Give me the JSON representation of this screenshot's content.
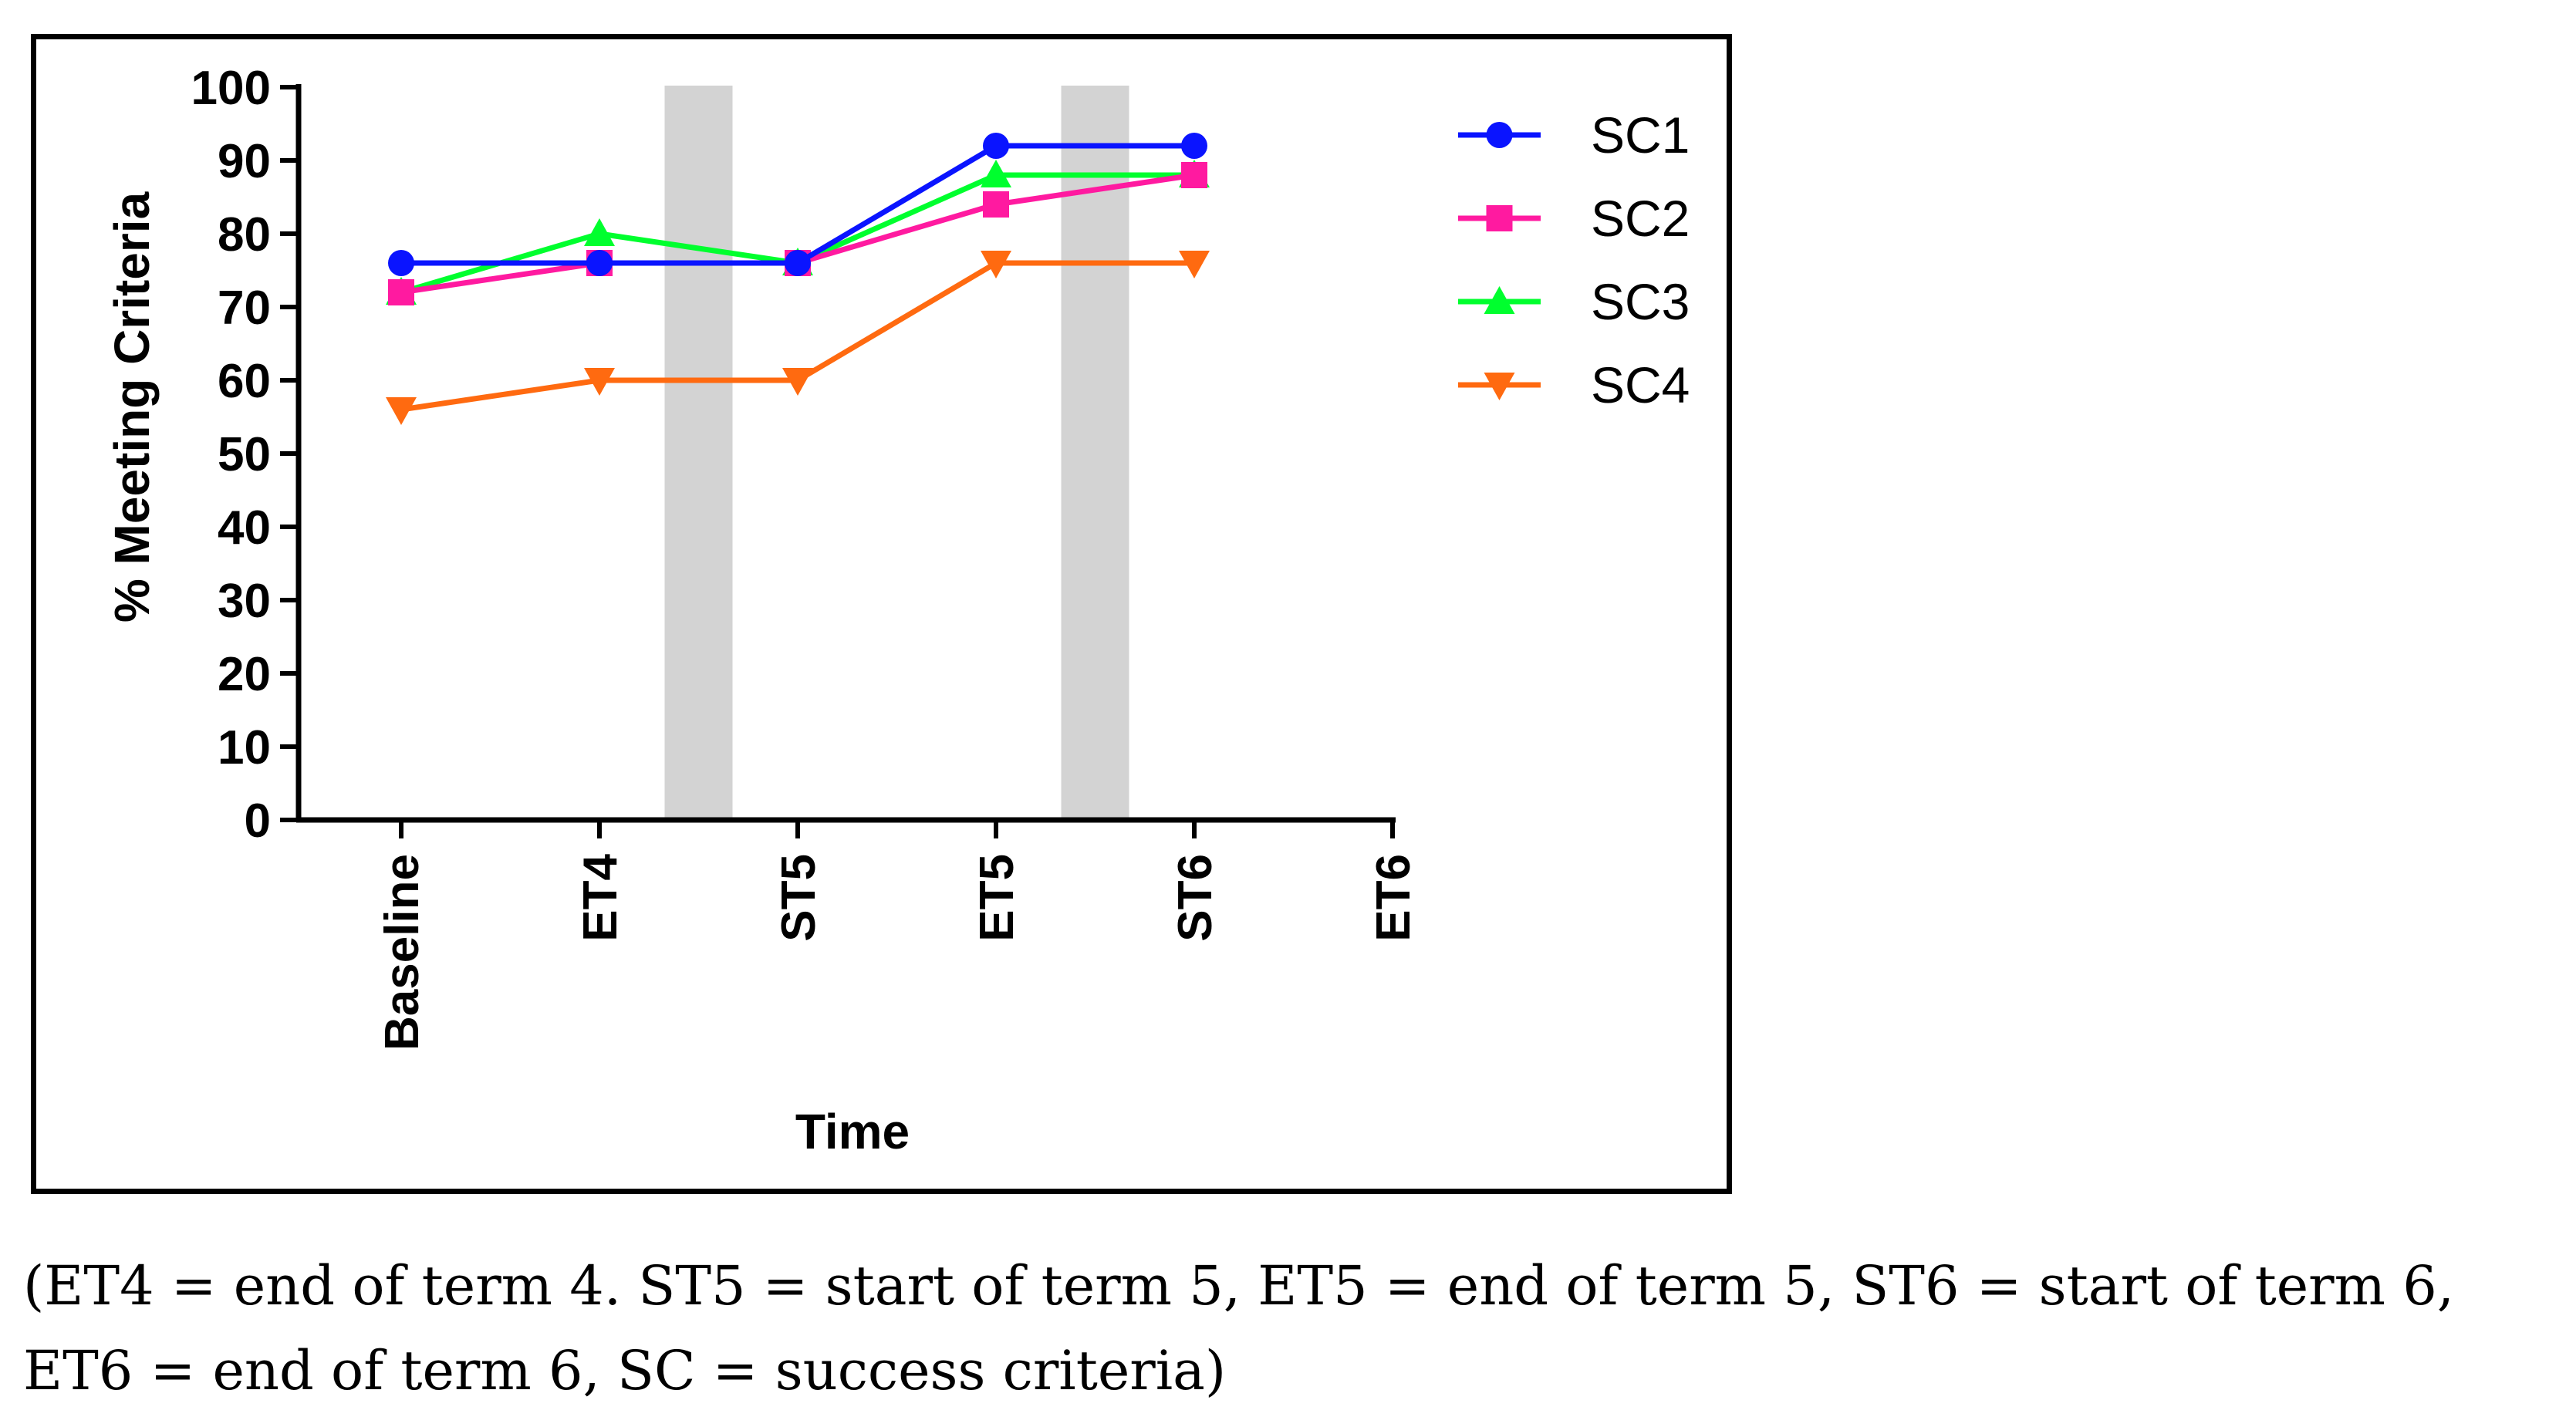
{
  "chart_data": {
    "type": "line",
    "title": "",
    "xlabel": "Time",
    "ylabel": "% Meeting Criteria",
    "categories": [
      "Baseline",
      "ET4",
      "ST5",
      "ET5",
      "ST6",
      "ET6"
    ],
    "ylim": [
      0,
      100
    ],
    "yticks": [
      0,
      10,
      20,
      30,
      40,
      50,
      60,
      70,
      80,
      90,
      100
    ],
    "shaded_bands": [
      {
        "between": [
          "ET4",
          "ST5"
        ]
      },
      {
        "between": [
          "ET5",
          "ST6"
        ]
      }
    ],
    "band_color": "#d3d3d3",
    "legend_position": "top-right",
    "series": [
      {
        "name": "SC1",
        "color": "#0a14ff",
        "marker": "circle",
        "values": [
          76,
          76,
          76,
          92,
          92,
          null
        ]
      },
      {
        "name": "SC2",
        "color": "#ff1aa0",
        "marker": "square",
        "values": [
          72,
          76,
          76,
          84,
          88,
          null
        ]
      },
      {
        "name": "SC3",
        "color": "#00ff2e",
        "marker": "triangle-up",
        "values": [
          72,
          80,
          76,
          88,
          88,
          null
        ]
      },
      {
        "name": "SC4",
        "color": "#ff6a10",
        "marker": "triangle-down",
        "values": [
          56,
          60,
          60,
          76,
          76,
          null
        ]
      }
    ]
  },
  "caption": "(ET4 = end of term 4. ST5 = start of term 5, ET5 = end of term 5, ST6 = start of term 6, ET6 = end of term 6, SC = success criteria)"
}
